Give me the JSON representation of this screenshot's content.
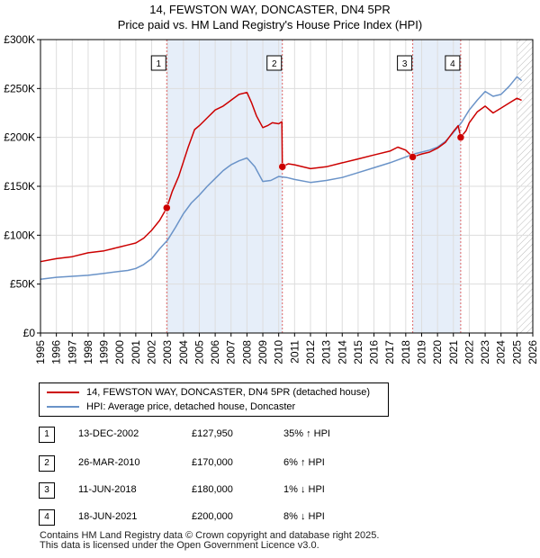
{
  "title": "14, FEWSTON WAY, DONCASTER, DN4 5PR",
  "subtitle": "Price paid vs. HM Land Registry's House Price Index (HPI)",
  "colors": {
    "property": "#cc0000",
    "hpi": "#6a93c8",
    "shade": "#e6eef9",
    "grid": "#dddddd"
  },
  "chart_data": {
    "type": "line",
    "xlim": [
      1995,
      2026
    ],
    "ylim": [
      0,
      300000
    ],
    "yticks": [
      {
        "value": 0,
        "label": "£0"
      },
      {
        "value": 50000,
        "label": "£50K"
      },
      {
        "value": 100000,
        "label": "£100K"
      },
      {
        "value": 150000,
        "label": "£150K"
      },
      {
        "value": 200000,
        "label": "£200K"
      },
      {
        "value": 250000,
        "label": "£250K"
      },
      {
        "value": 300000,
        "label": "£300K"
      }
    ],
    "xticks": [
      "1995",
      "1996",
      "1997",
      "1998",
      "1999",
      "2000",
      "2001",
      "2002",
      "2003",
      "2004",
      "2005",
      "2006",
      "2007",
      "2008",
      "2009",
      "2010",
      "2011",
      "2012",
      "2013",
      "2014",
      "2015",
      "2016",
      "2017",
      "2018",
      "2019",
      "2020",
      "2021",
      "2022",
      "2023",
      "2024",
      "2025",
      "2026"
    ],
    "shaded_ranges": [
      [
        2002.95,
        2010.23
      ],
      [
        2018.44,
        2021.46
      ]
    ],
    "future_start": 2025.0,
    "series": [
      {
        "name": "14, FEWSTON WAY, DONCASTER, DN4 5PR (detached house)",
        "key": "property",
        "x": [
          1995.0,
          1996.0,
          1997.0,
          1998.0,
          1999.0,
          2000.0,
          2000.5,
          2001.0,
          2001.5,
          2002.0,
          2002.5,
          2002.95,
          2003.3,
          2003.7,
          2004.0,
          2004.3,
          2004.7,
          2005.0,
          2005.5,
          2006.0,
          2006.5,
          2007.0,
          2007.5,
          2008.0,
          2008.3,
          2008.6,
          2009.0,
          2009.3,
          2009.6,
          2010.0,
          2010.2,
          2010.23,
          2010.6,
          2011.0,
          2012.0,
          2013.0,
          2014.0,
          2015.0,
          2016.0,
          2017.0,
          2017.5,
          2018.0,
          2018.44,
          2018.8,
          2019.0,
          2019.5,
          2020.0,
          2020.5,
          2021.0,
          2021.3,
          2021.46,
          2021.8,
          2022.0,
          2022.5,
          2023.0,
          2023.5,
          2024.0,
          2024.5,
          2025.0,
          2025.3
        ],
        "values": [
          73000,
          76000,
          78000,
          82000,
          84000,
          88000,
          90000,
          92000,
          97000,
          105000,
          115000,
          127950,
          145000,
          160000,
          175000,
          190000,
          208000,
          212000,
          220000,
          228000,
          232000,
          238000,
          244000,
          246000,
          235000,
          222000,
          210000,
          212000,
          215000,
          214000,
          216000,
          170000,
          173000,
          172000,
          168000,
          170000,
          174000,
          178000,
          182000,
          186000,
          190000,
          187000,
          180000,
          182000,
          183000,
          185000,
          189000,
          195000,
          206000,
          212000,
          200000,
          207000,
          215000,
          226000,
          232000,
          225000,
          230000,
          235000,
          240000,
          238000
        ]
      },
      {
        "name": "HPI: Average price, detached house, Doncaster",
        "key": "hpi",
        "x": [
          1995.0,
          1996.0,
          1997.0,
          1998.0,
          1999.0,
          2000.0,
          2000.5,
          2001.0,
          2001.5,
          2002.0,
          2002.5,
          2003.0,
          2003.5,
          2004.0,
          2004.5,
          2005.0,
          2005.5,
          2006.0,
          2006.5,
          2007.0,
          2007.5,
          2008.0,
          2008.5,
          2009.0,
          2009.5,
          2010.0,
          2010.5,
          2011.0,
          2012.0,
          2013.0,
          2014.0,
          2015.0,
          2016.0,
          2017.0,
          2017.5,
          2018.0,
          2018.5,
          2019.0,
          2019.5,
          2020.0,
          2020.5,
          2021.0,
          2021.5,
          2022.0,
          2022.5,
          2023.0,
          2023.5,
          2024.0,
          2024.5,
          2025.0,
          2025.3
        ],
        "values": [
          55000,
          57000,
          58000,
          59000,
          61000,
          63000,
          64000,
          66000,
          70000,
          76000,
          86000,
          95000,
          108000,
          122000,
          133000,
          141000,
          150000,
          158000,
          166000,
          172000,
          176000,
          179000,
          170000,
          155000,
          156000,
          160000,
          159000,
          157000,
          154000,
          156000,
          159000,
          164000,
          169000,
          174000,
          177000,
          180000,
          183000,
          185000,
          187000,
          190000,
          196000,
          205000,
          215000,
          228000,
          238000,
          247000,
          242000,
          244000,
          252000,
          262000,
          258000
        ]
      }
    ],
    "sales": [
      {
        "id": "1",
        "date": "13-DEC-2002",
        "x": 2002.95,
        "price": 127950,
        "price_label": "£127,950",
        "hpi": "35% ↑ HPI"
      },
      {
        "id": "2",
        "date": "26-MAR-2010",
        "x": 2010.23,
        "price": 170000,
        "price_label": "£170,000",
        "hpi": "6% ↑ HPI"
      },
      {
        "id": "3",
        "date": "11-JUN-2018",
        "x": 2018.44,
        "price": 180000,
        "price_label": "£180,000",
        "hpi": "1% ↓ HPI"
      },
      {
        "id": "4",
        "date": "18-JUN-2021",
        "x": 2021.46,
        "price": 200000,
        "price_label": "£200,000",
        "hpi": "8% ↓ HPI"
      }
    ]
  },
  "legend": {
    "property": "14, FEWSTON WAY, DONCASTER, DN4 5PR (detached house)",
    "hpi": "HPI: Average price, detached house, Doncaster"
  },
  "footer": {
    "line1": "Contains HM Land Registry data © Crown copyright and database right 2025.",
    "line2": "This data is licensed under the Open Government Licence v3.0."
  }
}
